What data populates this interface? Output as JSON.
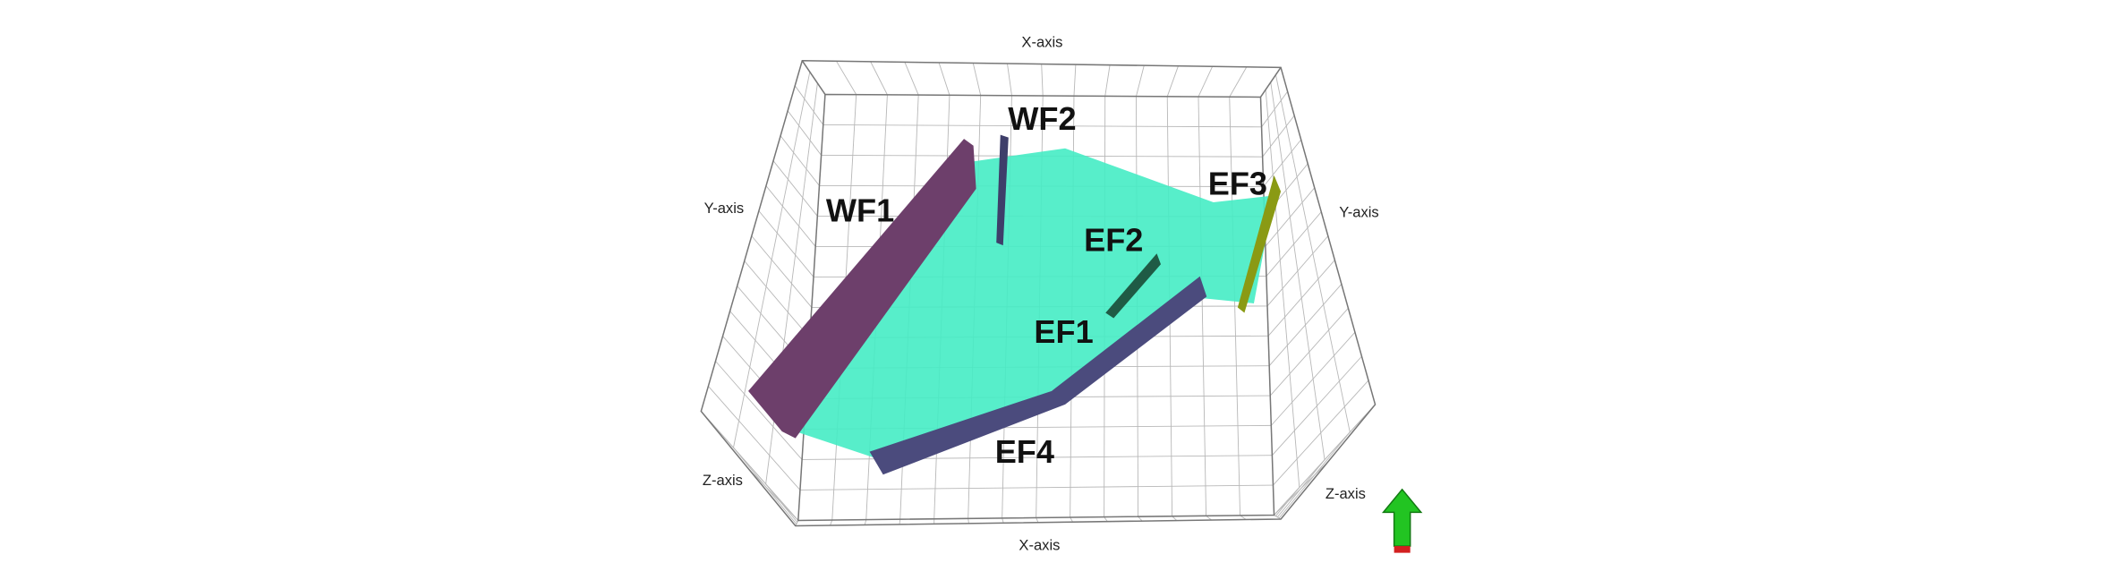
{
  "axis_labels": {
    "x_top": "X-axis",
    "x_bottom": "X-axis",
    "y_left": "Y-axis",
    "y_right": "Y-axis",
    "z_left": "Z-axis",
    "z_right": "Z-axis"
  },
  "fault_labels": {
    "wf1": "WF1",
    "wf2": "WF2",
    "ef1": "EF1",
    "ef2": "EF2",
    "ef3": "EF3",
    "ef4": "EF4"
  }
}
